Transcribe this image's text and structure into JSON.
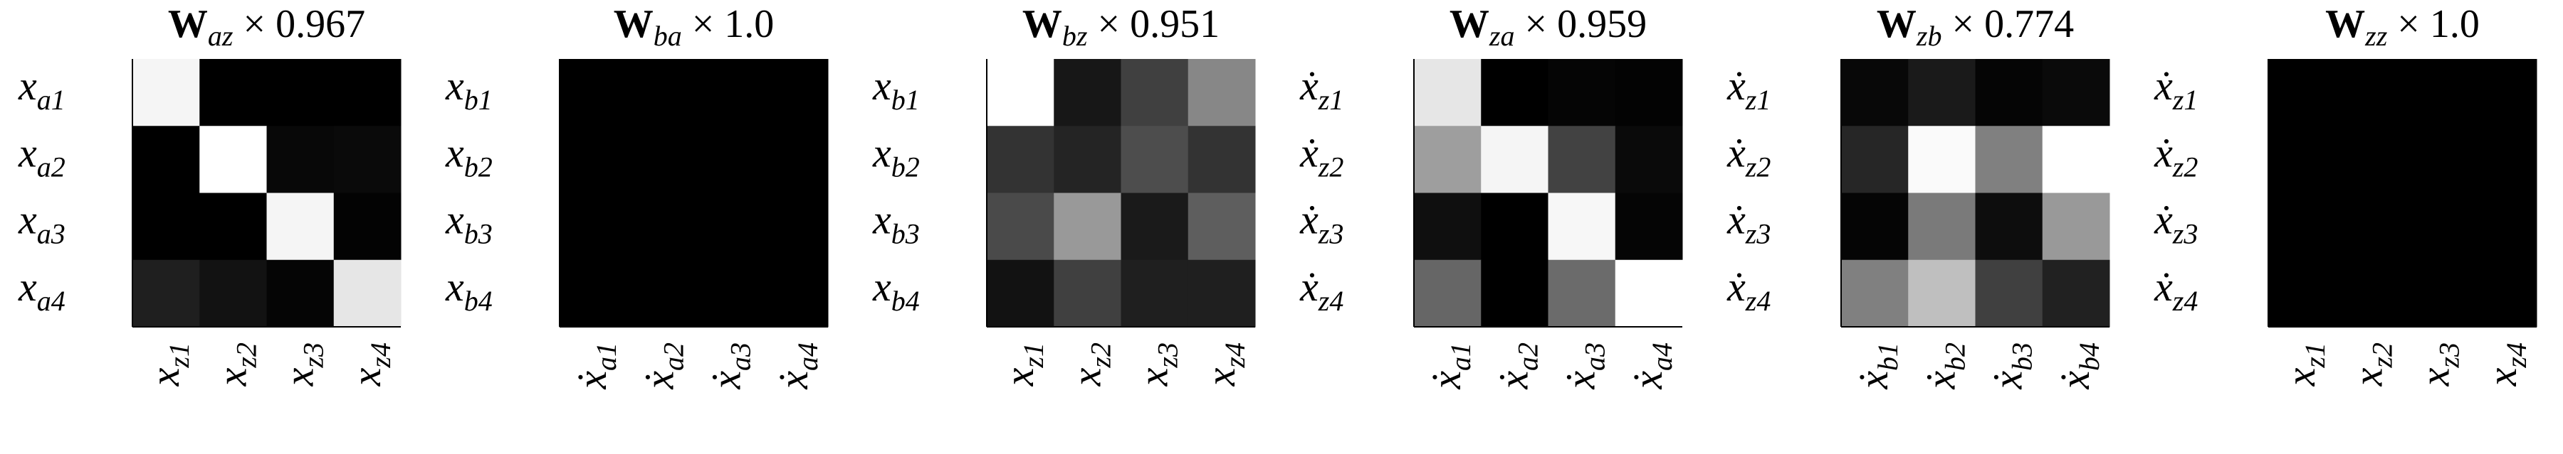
{
  "chart_data": [
    {
      "type": "heatmap",
      "title": {
        "matrix": "W",
        "subscript": "az",
        "scale": "× 0.967"
      },
      "row_labels": [
        {
          "base": "x",
          "sub": "a1"
        },
        {
          "base": "x",
          "sub": "a2"
        },
        {
          "base": "x",
          "sub": "a3"
        },
        {
          "base": "x",
          "sub": "a4"
        }
      ],
      "col_labels": [
        {
          "base": "x",
          "sub": "z1"
        },
        {
          "base": "x",
          "sub": "z2"
        },
        {
          "base": "x",
          "sub": "z3"
        },
        {
          "base": "x",
          "sub": "z4"
        }
      ],
      "values": [
        [
          0.96,
          0,
          0,
          0
        ],
        [
          0,
          1,
          0.03,
          0.04
        ],
        [
          0,
          0,
          0.96,
          0.01
        ],
        [
          0.12,
          0.07,
          0.02,
          0.9
        ]
      ],
      "colormap": "gray",
      "zlim": [
        0,
        1
      ]
    },
    {
      "type": "heatmap",
      "title": {
        "matrix": "W",
        "subscript": "ba",
        "scale": "× 1.0"
      },
      "row_labels": [
        {
          "base": "x",
          "sub": "b1"
        },
        {
          "base": "x",
          "sub": "b2"
        },
        {
          "base": "x",
          "sub": "b3"
        },
        {
          "base": "x",
          "sub": "b4"
        }
      ],
      "col_labels": [
        {
          "base": "ẋ",
          "sub": "a1"
        },
        {
          "base": "ẋ",
          "sub": "a2"
        },
        {
          "base": "ẋ",
          "sub": "a3"
        },
        {
          "base": "ẋ",
          "sub": "a4"
        }
      ],
      "values": [
        [
          0,
          0,
          0,
          0
        ],
        [
          0,
          0,
          0,
          0
        ],
        [
          0,
          0,
          0,
          0
        ],
        [
          0,
          0,
          0,
          0
        ]
      ],
      "colormap": "gray",
      "zlim": [
        0,
        1
      ]
    },
    {
      "type": "heatmap",
      "title": {
        "matrix": "W",
        "subscript": "bz",
        "scale": "× 0.951"
      },
      "row_labels": [
        {
          "base": "x",
          "sub": "b1"
        },
        {
          "base": "x",
          "sub": "b2"
        },
        {
          "base": "x",
          "sub": "b3"
        },
        {
          "base": "x",
          "sub": "b4"
        }
      ],
      "col_labels": [
        {
          "base": "x",
          "sub": "z1"
        },
        {
          "base": "x",
          "sub": "z2"
        },
        {
          "base": "x",
          "sub": "z3"
        },
        {
          "base": "x",
          "sub": "z4"
        }
      ],
      "values": [
        [
          1,
          0.09,
          0.25,
          0.53
        ],
        [
          0.2,
          0.14,
          0.3,
          0.2
        ],
        [
          0.29,
          0.6,
          0.1,
          0.37
        ],
        [
          0.07,
          0.25,
          0.12,
          0.12
        ]
      ],
      "colormap": "gray",
      "zlim": [
        0,
        1
      ]
    },
    {
      "type": "heatmap",
      "title": {
        "matrix": "W",
        "subscript": "za",
        "scale": "× 0.959"
      },
      "row_labels": [
        {
          "base": "ẋ",
          "sub": "z1"
        },
        {
          "base": "ẋ",
          "sub": "z2"
        },
        {
          "base": "ẋ",
          "sub": "z3"
        },
        {
          "base": "ẋ",
          "sub": "z4"
        }
      ],
      "col_labels": [
        {
          "base": "ẋ",
          "sub": "a1"
        },
        {
          "base": "ẋ",
          "sub": "a2"
        },
        {
          "base": "ẋ",
          "sub": "a3"
        },
        {
          "base": "ẋ",
          "sub": "a4"
        }
      ],
      "values": [
        [
          0.9,
          0,
          0.02,
          0.01
        ],
        [
          0.62,
          0.96,
          0.26,
          0.04
        ],
        [
          0.06,
          0,
          0.97,
          0.02
        ],
        [
          0.4,
          0,
          0.42,
          1
        ]
      ],
      "colormap": "gray",
      "zlim": [
        0,
        1
      ]
    },
    {
      "type": "heatmap",
      "title": {
        "matrix": "W",
        "subscript": "zb",
        "scale": "× 0.774"
      },
      "row_labels": [
        {
          "base": "ẋ",
          "sub": "z1"
        },
        {
          "base": "ẋ",
          "sub": "z2"
        },
        {
          "base": "ẋ",
          "sub": "z3"
        },
        {
          "base": "ẋ",
          "sub": "z4"
        }
      ],
      "col_labels": [
        {
          "base": "ẋ",
          "sub": "b1"
        },
        {
          "base": "ẋ",
          "sub": "b2"
        },
        {
          "base": "ẋ",
          "sub": "b3"
        },
        {
          "base": "ẋ",
          "sub": "b4"
        }
      ],
      "values": [
        [
          0.03,
          0.1,
          0.02,
          0.04
        ],
        [
          0.15,
          0.98,
          0.5,
          1
        ],
        [
          0.02,
          0.48,
          0.05,
          0.6
        ],
        [
          0.5,
          0.75,
          0.25,
          0.13
        ]
      ],
      "colormap": "gray",
      "zlim": [
        0,
        1
      ]
    },
    {
      "type": "heatmap",
      "title": {
        "matrix": "W",
        "subscript": "zz",
        "scale": "× 1.0"
      },
      "row_labels": [
        {
          "base": "ẋ",
          "sub": "z1"
        },
        {
          "base": "ẋ",
          "sub": "z2"
        },
        {
          "base": "ẋ",
          "sub": "z3"
        },
        {
          "base": "ẋ",
          "sub": "z4"
        }
      ],
      "col_labels": [
        {
          "base": "x",
          "sub": "z1"
        },
        {
          "base": "x",
          "sub": "z2"
        },
        {
          "base": "x",
          "sub": "z3"
        },
        {
          "base": "x",
          "sub": "z4"
        }
      ],
      "values": [
        [
          0,
          0,
          0,
          0
        ],
        [
          0,
          0,
          0,
          0
        ],
        [
          0,
          0,
          0,
          0
        ],
        [
          0,
          0,
          0,
          0
        ]
      ],
      "colormap": "gray",
      "zlim": [
        0,
        1
      ]
    }
  ]
}
